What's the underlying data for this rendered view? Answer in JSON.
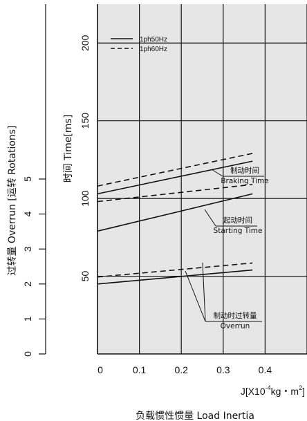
{
  "chart_data": {
    "type": "line",
    "xlabel": "J[X10-4kg・m2]",
    "xlabel_parts": {
      "prefix": "J[X10",
      "exp": "-4",
      "mid": "kg・m",
      "exp2": "2",
      "suffix": "]"
    },
    "ylabel": "时间 Time[ms]",
    "ylabel2": "过转量 Overrun [运转 Rotations]",
    "caption": "负载惯性惯量 Load Inertia",
    "xticks": [
      "0",
      "0.1",
      "0.2",
      "0.3",
      "0.4"
    ],
    "yticks": [
      "50",
      "100",
      "150",
      "200"
    ],
    "y2ticks": [
      "0",
      "1",
      "2",
      "3",
      "4",
      "5"
    ],
    "xlim": [
      0,
      0.5
    ],
    "ylim": [
      0,
      225
    ],
    "y2lim": [
      0,
      10
    ],
    "grid": true,
    "legend": [
      {
        "label": "1ph50Hz",
        "style": "solid"
      },
      {
        "label": "1ph60Hz",
        "style": "dashed"
      }
    ],
    "legend_position": "top-left",
    "series": [
      {
        "group": "Braking Time",
        "style": "solid",
        "x": [
          0,
          0.37
        ],
        "y": [
          103,
          124
        ]
      },
      {
        "group": "Braking Time",
        "style": "dashed",
        "x": [
          0,
          0.37
        ],
        "y": [
          108,
          129
        ]
      },
      {
        "group": "Starting Time",
        "style": "solid",
        "x": [
          0,
          0.37
        ],
        "y": [
          79,
          103
        ]
      },
      {
        "group": "Starting Time",
        "style": "dashed",
        "x": [
          0,
          0.37
        ],
        "y": [
          98,
          109
        ]
      },
      {
        "group": "Overrun",
        "style": "solid",
        "x": [
          0,
          0.37
        ],
        "y": [
          2.0,
          2.4
        ]
      },
      {
        "group": "Overrun",
        "style": "dashed",
        "x": [
          0,
          0.37
        ],
        "y": [
          2.2,
          2.6
        ]
      }
    ],
    "annotations": [
      {
        "zh": "制动时间",
        "en": "Braking Time",
        "target_x": 0.29,
        "target_y": 119
      },
      {
        "zh": "起动时间",
        "en": "Starting Time",
        "target_x": 0.24,
        "target_y": 94
      },
      {
        "zh": "制动时过转量",
        "en": "Overrun",
        "target_x": 0.25,
        "target_y": 2.3
      }
    ]
  }
}
